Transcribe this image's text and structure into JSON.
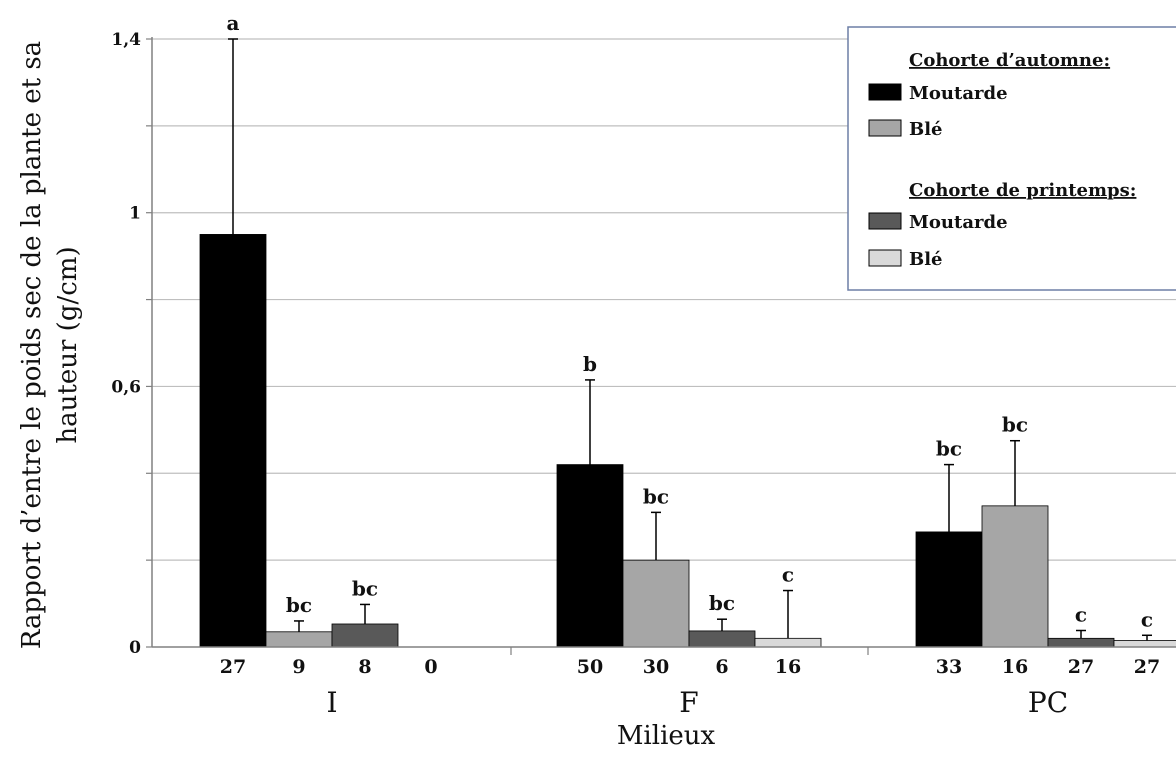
{
  "chart_data": {
    "type": "bar",
    "ylabel_lines": [
      "Rapport d’entre le poids sec de la plante et sa",
      "hauteur (g/cm)"
    ],
    "xlabel": "Milieux",
    "ylim": [
      0,
      1.4
    ],
    "yticks": [
      0,
      0.2,
      0.4,
      0.6,
      0.8,
      1.0,
      1.2,
      1.4
    ],
    "ytick_labels": [
      "0",
      "",
      "",
      "0,6",
      "",
      "1",
      "",
      "1,4"
    ],
    "categories": [
      "I",
      "F",
      "PC"
    ],
    "grid": true,
    "legend_placement": "top-right",
    "legend": {
      "group1_title": "Cohorte d’automne:",
      "group2_title": "Cohorte de printemps:"
    },
    "series": [
      {
        "name": "Moutarde",
        "cohort": "Cohorte d’automne",
        "color": "#000000",
        "values": [
          0.95,
          0.42,
          0.265
        ],
        "errors": [
          0.45,
          0.195,
          0.155
        ],
        "n": [
          "27",
          "50",
          "33"
        ],
        "sig": [
          "a",
          "b",
          "bc"
        ]
      },
      {
        "name": "Blé",
        "cohort": "Cohorte d’automne",
        "color": "#a6a6a6",
        "values": [
          0.035,
          0.2,
          0.325
        ],
        "errors": [
          0.025,
          0.11,
          0.15
        ],
        "n": [
          "9",
          "30",
          "16"
        ],
        "sig": [
          "bc",
          "bc",
          "bc"
        ]
      },
      {
        "name": "Moutarde",
        "cohort": "Cohorte de printemps",
        "color": "#595959",
        "values": [
          0.053,
          0.037,
          0.02
        ],
        "errors": [
          0.045,
          0.027,
          0.018
        ],
        "n": [
          "8",
          "6",
          "27"
        ],
        "sig": [
          "bc",
          "bc",
          "c"
        ]
      },
      {
        "name": "Blé",
        "cohort": "Cohorte de printemps",
        "color": "#d9d9d9",
        "values": [
          0,
          0.02,
          0.015
        ],
        "errors": [
          0,
          0.11,
          0.012
        ],
        "n": [
          "0",
          "16",
          "27"
        ],
        "sig": [
          "",
          "c",
          "c"
        ]
      }
    ]
  }
}
